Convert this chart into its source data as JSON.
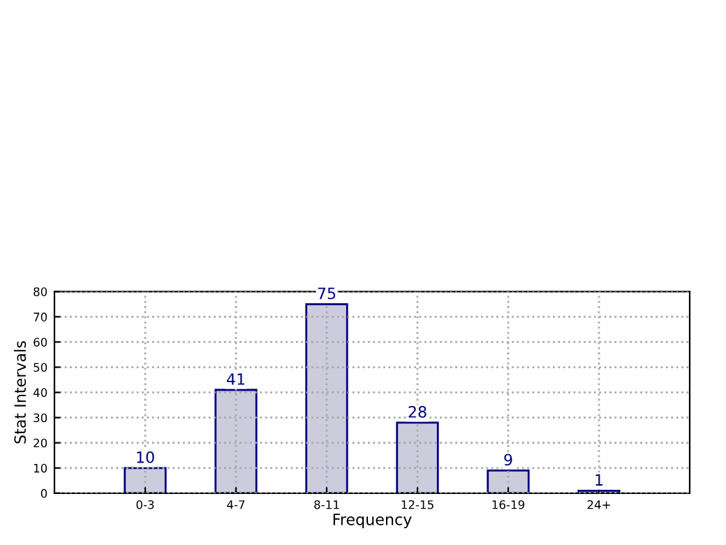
{
  "chart_data": {
    "type": "bar",
    "xlabel": "Frequency",
    "ylabel": "Stat Intervals",
    "categories": [
      "0-3",
      "4-7",
      "8-11",
      "12-15",
      "16-19",
      "24+"
    ],
    "values": [
      10,
      41,
      75,
      28,
      9,
      1
    ],
    "color": "#ccccdd",
    "ylim": [
      0,
      80
    ],
    "yticks": [
      0,
      10,
      20,
      30,
      40,
      50,
      60,
      70,
      80
    ],
    "grid": true,
    "data_labels": true
  }
}
